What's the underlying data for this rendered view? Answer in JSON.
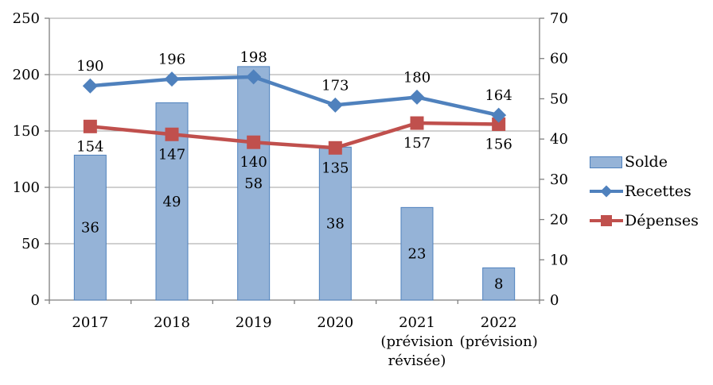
{
  "chart_data": {
    "type": "combo-bar-line",
    "title": "",
    "categories": [
      "2017",
      "2018",
      "2019",
      "2020",
      "2021",
      "2022"
    ],
    "category_sublines": [
      [],
      [],
      [],
      [],
      [
        "(prévision",
        "révisée)"
      ],
      [
        "(prévision)"
      ]
    ],
    "left_axis": {
      "min": 0,
      "max": 250,
      "step": 50,
      "ticks": [
        "0",
        "50",
        "100",
        "150",
        "200",
        "250"
      ]
    },
    "right_axis": {
      "min": 0,
      "max": 70,
      "step": 10,
      "ticks": [
        "0",
        "10",
        "20",
        "30",
        "40",
        "50",
        "60",
        "70"
      ]
    },
    "series": [
      {
        "name": "Solde",
        "type": "bar",
        "axis": "right",
        "values": [
          36,
          49,
          58,
          38,
          23,
          8
        ]
      },
      {
        "name": "Recettes",
        "type": "line",
        "axis": "left",
        "marker": "diamond",
        "values": [
          190,
          196,
          198,
          173,
          180,
          164
        ]
      },
      {
        "name": "Dépenses",
        "type": "line",
        "axis": "left",
        "marker": "square",
        "values": [
          154,
          147,
          140,
          135,
          157,
          156
        ]
      }
    ],
    "colors": {
      "bar_fill": "#95B3D7",
      "bar_border": "#4F81BD",
      "recettes": "#4F81BD",
      "depenses": "#C0504D",
      "gridline": "#A0A0A0",
      "axis": "#808080",
      "text": "#000000"
    },
    "legend": {
      "position": "right",
      "items": [
        "Solde",
        "Recettes",
        "Dépenses"
      ]
    },
    "grid": "horizontal"
  }
}
